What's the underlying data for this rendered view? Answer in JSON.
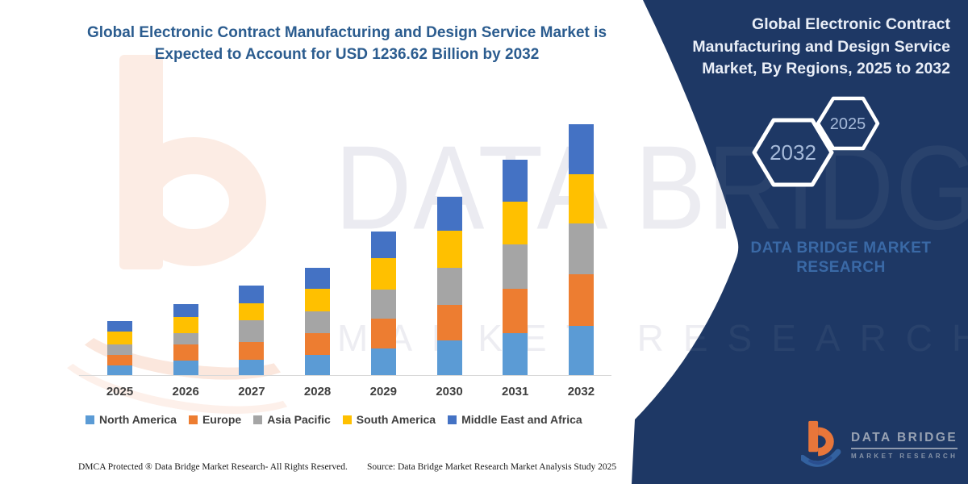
{
  "header": {
    "title_line1": "Global Electronic Contract Manufacturing and Design Service Market is",
    "title_line2": "Expected to Account for USD 1236.62 Billion by 2032"
  },
  "panel": {
    "bg_color": "#1e3865",
    "title_lines": [
      "Global Electronic Contract",
      "Manufacturing and Design Service",
      "Market, By Regions, 2025 to 2032"
    ],
    "hexagon_left_label": "2032",
    "hexagon_right_label": "2025",
    "brand_line1": "DATA BRIDGE MARKET",
    "brand_line2": "RESEARCH",
    "hexagon_text_color": "#a6bad9"
  },
  "watermarks": {
    "line1": "DATA BRIDGE",
    "line2": "MARKET RESEARCH"
  },
  "logo": {
    "brand": "DATA BRIDGE",
    "sub": "MARKET RESEARCH"
  },
  "footer": {
    "left": "DMCA Protected ® Data Bridge Market Research-  All Rights Reserved.",
    "right": "Source: Data Bridge Market Research  Market Analysis Study 2025"
  },
  "chart_data": {
    "type": "bar",
    "subtype": "stacked-vertical",
    "title": "Global Electronic Contract Manufacturing and Design Service Market, By Regions, 2025 to 2032",
    "unit": "USD Billion",
    "annotation": "Expected to account for USD 1236.62 Billion by 2032",
    "categories": [
      "2025",
      "2026",
      "2027",
      "2028",
      "2029",
      "2030",
      "2031",
      "2032"
    ],
    "series": [
      {
        "name": "North America",
        "color": "#5B9BD5",
        "values": [
          49,
          73,
          76,
          99,
          131,
          172,
          208,
          241.3
        ]
      },
      {
        "name": "Europe",
        "color": "#ED7D31",
        "values": [
          51,
          77,
          87,
          109,
          149,
          175,
          216,
          255.7
        ]
      },
      {
        "name": "Asia Pacific",
        "color": "#A5A5A5",
        "values": [
          53,
          58,
          106,
          106,
          141,
          183,
          219,
          249.3
        ]
      },
      {
        "name": "South America",
        "color": "#FFC000",
        "values": [
          60,
          77,
          85,
          110,
          157,
          182,
          212,
          243.7
        ]
      },
      {
        "name": "Middle East and Africa",
        "color": "#4472C4",
        "values": [
          53,
          64,
          87,
          106,
          131,
          167,
          206,
          246.62
        ]
      }
    ],
    "totals": [
      266,
      349,
      441,
      530,
      709,
      879,
      1061,
      1236.62
    ],
    "ylim": [
      0,
      1236.62
    ],
    "y_axis_visible": false,
    "gridlines": false,
    "legend_position": "bottom"
  }
}
